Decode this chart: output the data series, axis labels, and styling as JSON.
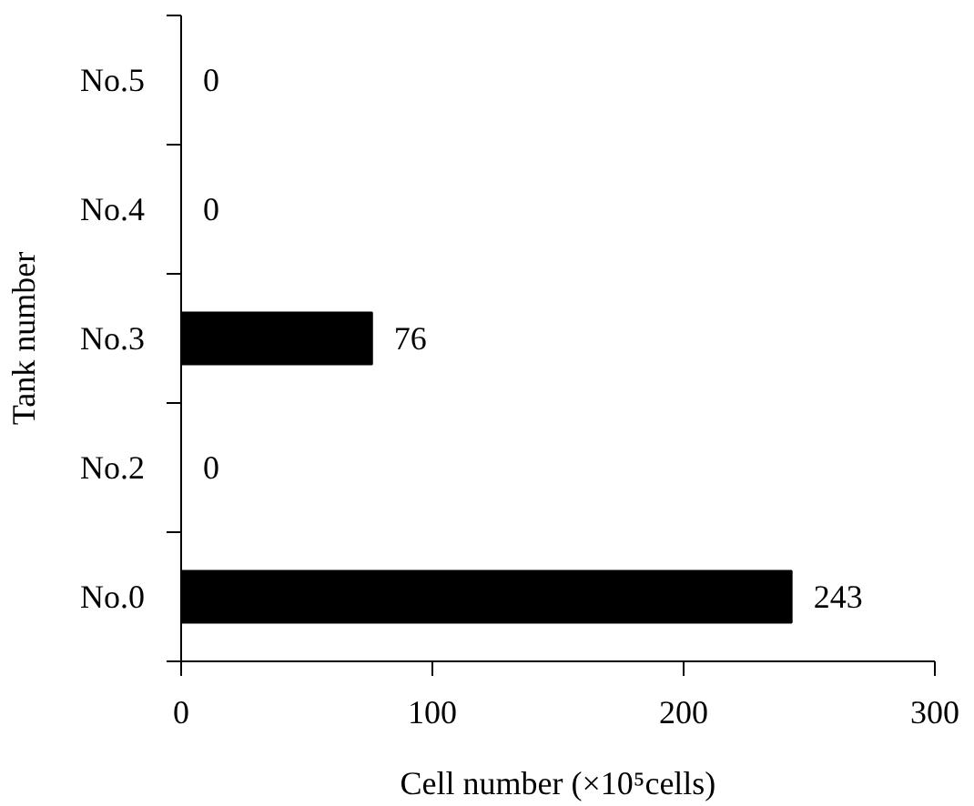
{
  "chart_data": {
    "type": "bar",
    "orientation": "horizontal",
    "categories": [
      "No.5",
      "No.4",
      "No.3",
      "No.2",
      "No.0"
    ],
    "values": [
      0,
      0,
      76,
      0,
      243
    ],
    "color": "#000000",
    "xlim": [
      0,
      300
    ],
    "xticks": [
      0,
      100,
      200,
      300
    ],
    "xlabel": "Cell number (×10⁵cells)",
    "ylabel": "Tank number",
    "data_labels": true,
    "grid": false
  }
}
